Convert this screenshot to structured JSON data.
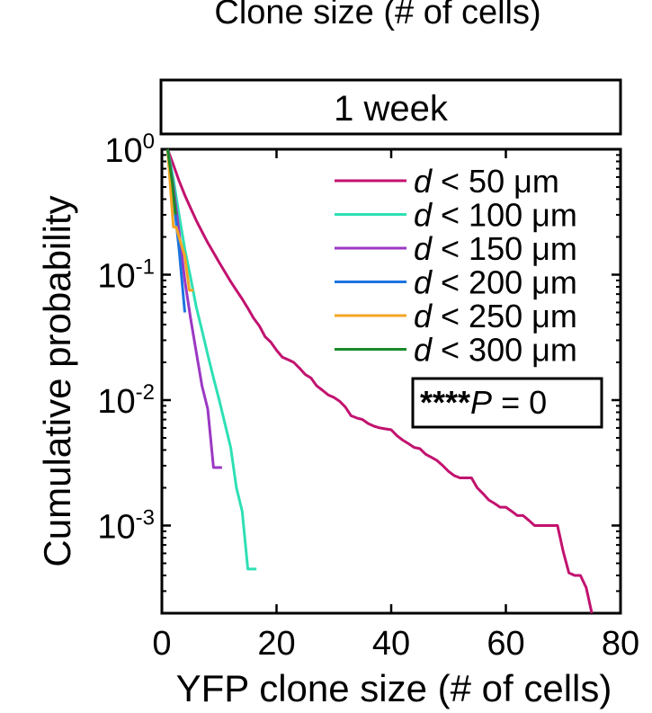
{
  "chart_data": {
    "type": "line",
    "top_cropped_label": "Clone size (# of cells)",
    "panel_title": "1 week",
    "xlabel": "YFP clone size (# of cells)",
    "ylabel": "Cumulative probability",
    "xlim": [
      0,
      80
    ],
    "ylim": [
      0.0002,
      1
    ],
    "y_scale": "log",
    "x_ticks": [
      0,
      20,
      40,
      60,
      80
    ],
    "x_tick_labels": [
      "0",
      "20",
      "40",
      "60",
      "80"
    ],
    "y_ticks": [
      {
        "value": 1,
        "base": "10",
        "exp": "0"
      },
      {
        "value": 0.1,
        "base": "10",
        "exp": "-1"
      },
      {
        "value": 0.01,
        "base": "10",
        "exp": "-2"
      },
      {
        "value": 0.001,
        "base": "10",
        "exp": "-3"
      }
    ],
    "legend_position": "top-right",
    "series": [
      {
        "name_var": "d",
        "name_rest": " < 50 μm",
        "color": "#c2126f",
        "points": [
          [
            1,
            1
          ],
          [
            2,
            0.75
          ],
          [
            3,
            0.56
          ],
          [
            4,
            0.43
          ],
          [
            5,
            0.34
          ],
          [
            6,
            0.27
          ],
          [
            7,
            0.22
          ],
          [
            8,
            0.18
          ],
          [
            9,
            0.15
          ],
          [
            10,
            0.125
          ],
          [
            11,
            0.105
          ],
          [
            12,
            0.088
          ],
          [
            13,
            0.075
          ],
          [
            14,
            0.064
          ],
          [
            15,
            0.054
          ],
          [
            16,
            0.045
          ],
          [
            17,
            0.039
          ],
          [
            18,
            0.032
          ],
          [
            19,
            0.029
          ],
          [
            20,
            0.025
          ],
          [
            21,
            0.022
          ],
          [
            22,
            0.021
          ],
          [
            23,
            0.02
          ],
          [
            24,
            0.018
          ],
          [
            25,
            0.016
          ],
          [
            26,
            0.015
          ],
          [
            27,
            0.013
          ],
          [
            28,
            0.012
          ],
          [
            29,
            0.011
          ],
          [
            30,
            0.0105
          ],
          [
            31,
            0.0098
          ],
          [
            32,
            0.0088
          ],
          [
            33,
            0.0075
          ],
          [
            34,
            0.0072
          ],
          [
            35,
            0.007
          ],
          [
            36,
            0.0065
          ],
          [
            37,
            0.0062
          ],
          [
            38,
            0.006
          ],
          [
            39,
            0.0059
          ],
          [
            40,
            0.0058
          ],
          [
            41,
            0.0052
          ],
          [
            42,
            0.0048
          ],
          [
            43,
            0.0045
          ],
          [
            44,
            0.0042
          ],
          [
            45,
            0.0041
          ],
          [
            46,
            0.0037
          ],
          [
            47,
            0.0035
          ],
          [
            48,
            0.0033
          ],
          [
            49,
            0.003
          ],
          [
            50,
            0.0027
          ],
          [
            51,
            0.0025
          ],
          [
            52,
            0.0024
          ],
          [
            53,
            0.0024
          ],
          [
            54,
            0.0024
          ],
          [
            55,
            0.002
          ],
          [
            56,
            0.0018
          ],
          [
            57,
            0.0016
          ],
          [
            58,
            0.0015
          ],
          [
            59,
            0.0014
          ],
          [
            60,
            0.0014
          ],
          [
            61,
            0.0013
          ],
          [
            62,
            0.0012
          ],
          [
            63,
            0.0012
          ],
          [
            64,
            0.0011
          ],
          [
            65,
            0.001
          ],
          [
            66,
            0.001
          ],
          [
            67,
            0.001
          ],
          [
            68,
            0.001
          ],
          [
            69,
            0.001
          ],
          [
            70,
            0.00062
          ],
          [
            71,
            0.00042
          ],
          [
            72,
            0.0004
          ],
          [
            73,
            0.0004
          ],
          [
            74,
            0.00032
          ],
          [
            75,
            0.0002
          ]
        ]
      },
      {
        "name_var": "d",
        "name_rest": " < 100 μm",
        "color": "#2ee0b4",
        "points": [
          [
            1,
            1
          ],
          [
            2,
            0.58
          ],
          [
            3,
            0.3
          ],
          [
            4,
            0.16
          ],
          [
            5,
            0.095
          ],
          [
            6,
            0.055
          ],
          [
            7,
            0.036
          ],
          [
            8,
            0.023
          ],
          [
            9,
            0.015
          ],
          [
            10,
            0.01
          ],
          [
            11,
            0.0065
          ],
          [
            12,
            0.0042
          ],
          [
            13,
            0.002
          ],
          [
            14,
            0.0013
          ],
          [
            15,
            0.00045
          ],
          [
            16.5,
            0.00045
          ]
        ]
      },
      {
        "name_var": "d",
        "name_rest": " < 150 μm",
        "color": "#9b38c4",
        "points": [
          [
            1,
            1
          ],
          [
            2,
            0.5
          ],
          [
            3,
            0.22
          ],
          [
            4,
            0.09
          ],
          [
            5,
            0.045
          ],
          [
            6,
            0.024
          ],
          [
            7,
            0.013
          ],
          [
            8,
            0.0085
          ],
          [
            9,
            0.0029
          ],
          [
            10.5,
            0.0029
          ]
        ]
      },
      {
        "name_var": "d",
        "name_rest": " < 200 μm",
        "color": "#1b74e0",
        "points": [
          [
            1,
            1
          ],
          [
            2,
            0.42
          ],
          [
            3,
            0.16
          ],
          [
            4,
            0.05
          ]
        ]
      },
      {
        "name_var": "d",
        "name_rest": " < 250 μm",
        "color": "#f5a623",
        "points": [
          [
            1,
            1
          ],
          [
            2,
            0.24
          ],
          [
            2.5,
            0.24
          ],
          [
            3,
            0.2
          ],
          [
            4,
            0.14
          ],
          [
            4.8,
            0.075
          ],
          [
            5.5,
            0.075
          ]
        ]
      },
      {
        "name_var": "d",
        "name_rest": " < 300 μm",
        "color": "#1a8a2a",
        "points": [
          [
            1,
            1
          ],
          [
            1.8,
            0.55
          ],
          [
            2.4,
            0.3
          ]
        ]
      }
    ],
    "stat_stars": "****",
    "stat_var": "P",
    "stat_rest": " = 0"
  }
}
